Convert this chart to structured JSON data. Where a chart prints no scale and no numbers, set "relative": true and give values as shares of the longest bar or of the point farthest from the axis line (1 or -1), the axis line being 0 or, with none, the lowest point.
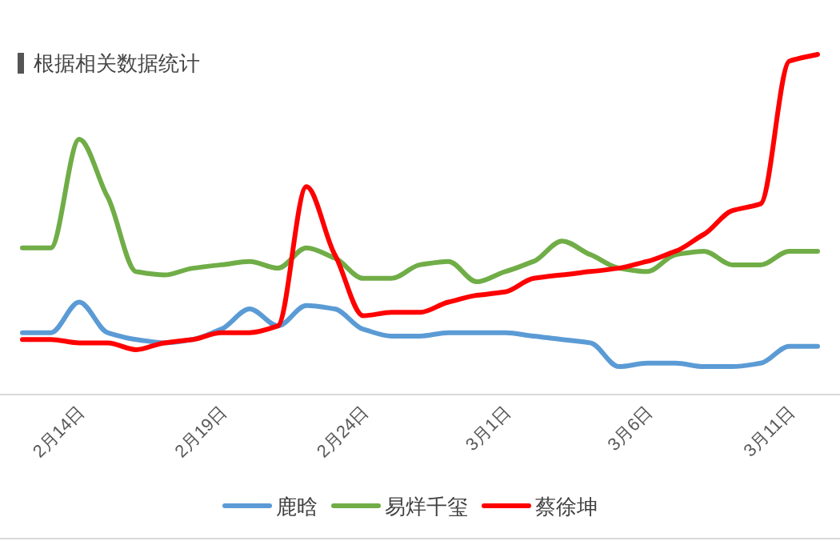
{
  "chart_data": {
    "type": "line",
    "title": "根据相关数据统计",
    "relative": true,
    "legend": "bottom",
    "categories": [
      null,
      null,
      "2月14日",
      null,
      null,
      null,
      null,
      "2月19日",
      null,
      null,
      null,
      null,
      "2月24日",
      null,
      null,
      null,
      null,
      "3月1日",
      null,
      null,
      null,
      null,
      "3月6日",
      null,
      null,
      null,
      null,
      "3月11日",
      null
    ],
    "series": [
      {
        "name": "鹿晗",
        "color": "#5b9bd5",
        "values": [
          0.18,
          0.18,
          0.27,
          0.18,
          0.16,
          0.15,
          0.16,
          0.19,
          0.25,
          0.2,
          0.26,
          0.25,
          0.19,
          0.17,
          0.17,
          0.18,
          0.18,
          0.18,
          0.17,
          0.16,
          0.15,
          0.08,
          0.09,
          0.09,
          0.08,
          0.08,
          0.09,
          0.14,
          0.14
        ]
      },
      {
        "name": "易烊千玺",
        "color": "#70ad47",
        "values": [
          0.43,
          0.43,
          0.75,
          0.58,
          0.36,
          0.35,
          0.37,
          0.38,
          0.39,
          0.37,
          0.43,
          0.4,
          0.34,
          0.34,
          0.38,
          0.39,
          0.33,
          0.36,
          0.39,
          0.45,
          0.41,
          0.37,
          0.36,
          0.41,
          0.42,
          0.38,
          0.38,
          0.42,
          0.42
        ]
      },
      {
        "name": "蔡徐坤",
        "color": "#ff0000",
        "values": [
          0.16,
          0.16,
          0.15,
          0.15,
          0.13,
          0.15,
          0.16,
          0.18,
          0.18,
          0.2,
          0.61,
          0.41,
          0.23,
          0.24,
          0.24,
          0.27,
          0.29,
          0.3,
          0.34,
          0.35,
          0.36,
          0.37,
          0.39,
          0.42,
          0.47,
          0.54,
          0.56,
          0.98,
          1
        ]
      }
    ]
  }
}
